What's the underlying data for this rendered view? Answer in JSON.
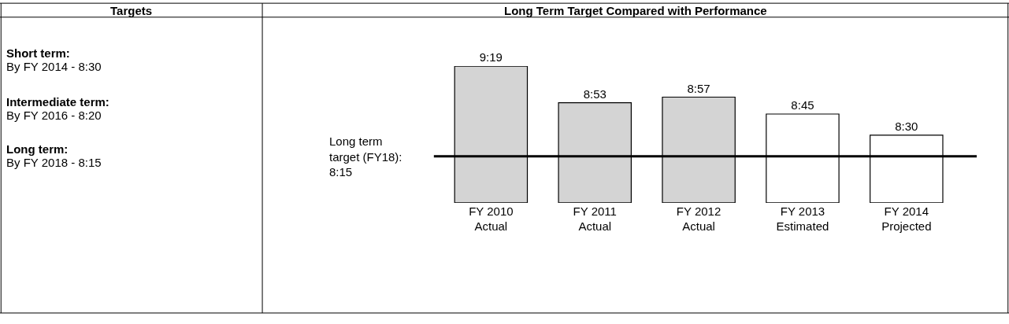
{
  "chart_data": [
    {
      "type": "other",
      "title": "Targets",
      "annotations": [
        "Short term:",
        "By FY 2014 - 8:30",
        "Intermediate term:",
        "By FY 2016 - 8:20",
        "Long term:",
        "By FY 2018 - 8:15"
      ]
    },
    {
      "type": "bar",
      "title": "Long Term Target Compared with Performance",
      "categories": [
        "FY 2010\nActual",
        "FY 2011\nActual",
        "FY 2012\nActual",
        "FY 2013\nEstimated",
        "FY 2014\nProjected"
      ],
      "values": [
        9.317,
        8.883,
        8.95,
        8.75,
        8.5
      ],
      "value_labels": [
        "9:19",
        "8:53",
        "8:57",
        "8:45",
        "8:30"
      ],
      "colors": [
        "#d4d4d4",
        "#d4d4d4",
        "#d4d4d4",
        "#ffffff",
        "#ffffff"
      ],
      "ylim": [
        7.7,
        9.317
      ],
      "tick_labels": "x",
      "ref_lines": [
        {
          "axis": "y",
          "value": 8.25,
          "label": "Long term\ntarget (FY18):\n8:15",
          "color": "#000000"
        }
      ]
    }
  ]
}
